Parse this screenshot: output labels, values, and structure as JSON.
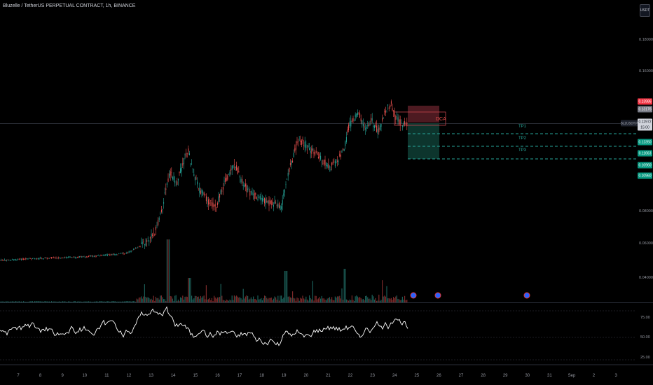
{
  "header": {
    "title": "Bluzelle / TetherUS PERPETUAL CONTRACT, 1h, BINANCE",
    "currency_button": "USDT"
  },
  "price_axis": {
    "ticks": [
      "0.18000",
      "0.16000",
      "0.08000",
      "0.06000",
      "0.04000"
    ],
    "labels": [
      {
        "text": "0.13986",
        "color": "#f23645"
      },
      {
        "text": "0.13176",
        "color": "#787b86"
      },
      {
        "text": "BLZUSDT.P",
        "color": "#b2b5be"
      },
      {
        "text": "0.12972",
        "color": "#d1d4dc"
      },
      {
        "text": "15:00",
        "color": "#d1d4dc"
      },
      {
        "text": "0.12350",
        "color": "#089981"
      },
      {
        "text": "0.11663",
        "color": "#089981"
      },
      {
        "text": "0.10960",
        "color": "#089981"
      },
      {
        "text": "0.10960",
        "color": "#089981"
      }
    ]
  },
  "time_axis": {
    "labels": [
      "7",
      "8",
      "9",
      "10",
      "11",
      "12",
      "13",
      "14",
      "15",
      "16",
      "17",
      "18",
      "19",
      "20",
      "21",
      "22",
      "23",
      "24",
      "25",
      "26",
      "27",
      "28",
      "29",
      "30",
      "31",
      "Sep",
      "2",
      "3"
    ]
  },
  "trade": {
    "dca_label": "DCA",
    "tp_labels": [
      "TP1",
      "TP2",
      "TP3"
    ]
  },
  "oscillator": {
    "ticks": [
      "75.00",
      "50.00",
      "25.00"
    ]
  },
  "colors": {
    "up": "#26a69a",
    "down": "#ef5350",
    "background": "#000000"
  },
  "icons": [
    "currency-icon",
    "event-icon"
  ]
}
